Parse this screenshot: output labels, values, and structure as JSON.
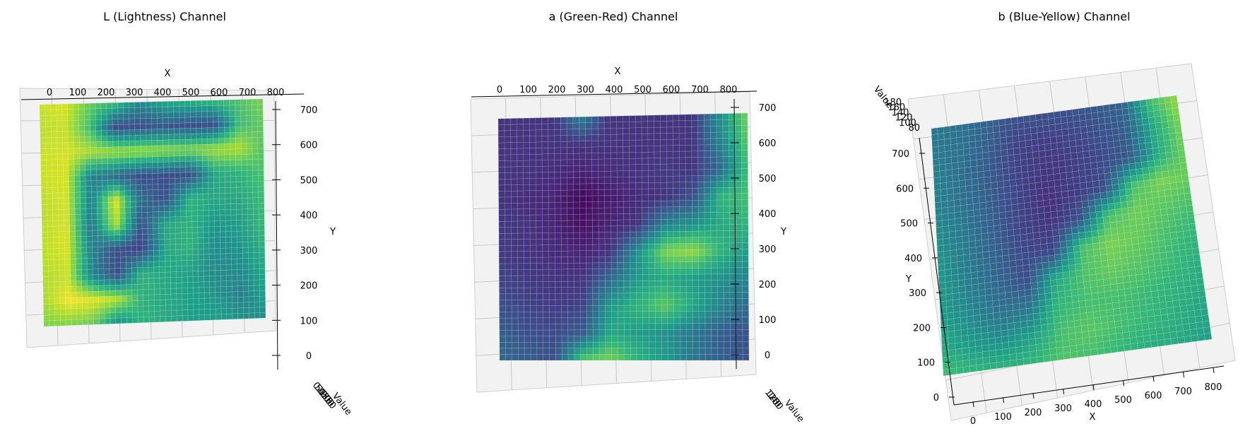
{
  "figure": {
    "subplots": [
      {
        "title": "L (Lightness) Channel"
      },
      {
        "title": "a (Green-Red) Channel"
      },
      {
        "title": "b (Blue-Yellow) Channel"
      }
    ]
  },
  "colors": {
    "colormap": "viridis",
    "low": "#440154",
    "mid": "#21918c",
    "high": "#fde725"
  },
  "chart_data": [
    {
      "type": "surface3d",
      "title": "L (Lightness) Channel",
      "xlabel": "X",
      "ylabel": "Y",
      "zlabel": "Value",
      "x_ticks": [
        "0",
        "100",
        "200",
        "300",
        "400",
        "500",
        "600",
        "700",
        "800"
      ],
      "y_ticks": [
        "0",
        "100",
        "200",
        "300",
        "400",
        "500",
        "600",
        "700"
      ],
      "z_ticks": [
        "0",
        "50",
        "100",
        "150",
        "200",
        "250"
      ],
      "xlim": [
        0,
        800
      ],
      "ylim": [
        0,
        700
      ],
      "zlim": [
        0,
        250
      ],
      "view": "top-down",
      "colormap": "viridis",
      "surface_value_grid": [
        [
          230,
          235,
          190,
          175,
          120,
          150,
          160,
          170,
          180,
          200
        ],
        [
          225,
          230,
          175,
          60,
          60,
          70,
          60,
          60,
          170,
          190
        ],
        [
          230,
          235,
          220,
          215,
          215,
          210,
          205,
          215,
          220,
          180
        ],
        [
          230,
          235,
          110,
          90,
          60,
          60,
          60,
          150,
          160,
          180
        ],
        [
          225,
          235,
          110,
          240,
          90,
          60,
          160,
          150,
          150,
          170
        ],
        [
          225,
          235,
          100,
          220,
          60,
          150,
          160,
          130,
          140,
          170
        ],
        [
          225,
          235,
          110,
          60,
          50,
          150,
          160,
          120,
          130,
          160
        ],
        [
          220,
          230,
          110,
          60,
          160,
          150,
          140,
          120,
          120,
          150
        ],
        [
          215,
          245,
          240,
          220,
          160,
          150,
          140,
          130,
          110,
          140
        ],
        [
          200,
          200,
          190,
          120,
          160,
          150,
          140,
          140,
          130,
          120
        ]
      ]
    },
    {
      "type": "surface3d",
      "title": "a (Green-Red) Channel",
      "xlabel": "X",
      "ylabel": "Y",
      "zlabel": "Value",
      "x_ticks": [
        "0",
        "100",
        "200",
        "300",
        "400",
        "500",
        "600",
        "700",
        "800"
      ],
      "y_ticks": [
        "0",
        "100",
        "200",
        "300",
        "400",
        "500",
        "600",
        "700"
      ],
      "z_ticks": [
        "120",
        "140",
        "160"
      ],
      "xlim": [
        0,
        800
      ],
      "ylim": [
        0,
        700
      ],
      "zlim": [
        120,
        160
      ],
      "view": "top-down",
      "colormap": "viridis",
      "surface_value_grid": [
        [
          126,
          126,
          126,
          138,
          126,
          126,
          126,
          126,
          140,
          152
        ],
        [
          126,
          126,
          126,
          126,
          126,
          126,
          126,
          126,
          138,
          150
        ],
        [
          126,
          126,
          125,
          124,
          125,
          126,
          127,
          126,
          134,
          148
        ],
        [
          126,
          125,
          124,
          121,
          123,
          125,
          126,
          130,
          146,
          148
        ],
        [
          127,
          126,
          124,
          122,
          124,
          126,
          138,
          140,
          144,
          146
        ],
        [
          127,
          126,
          125,
          124,
          126,
          140,
          152,
          154,
          146,
          142
        ],
        [
          128,
          127,
          126,
          126,
          134,
          142,
          144,
          142,
          140,
          138
        ],
        [
          130,
          128,
          127,
          128,
          142,
          146,
          150,
          144,
          138,
          134
        ],
        [
          132,
          130,
          129,
          132,
          144,
          142,
          140,
          136,
          132,
          130
        ],
        [
          134,
          132,
          130,
          150,
          152,
          146,
          142,
          136,
          132,
          130
        ]
      ]
    },
    {
      "type": "surface3d",
      "title": "b (Blue-Yellow) Channel",
      "xlabel": "X",
      "ylabel": "Y",
      "zlabel": "Value",
      "x_ticks": [
        "0",
        "100",
        "200",
        "300",
        "400",
        "500",
        "600",
        "700",
        "800"
      ],
      "y_ticks": [
        "0",
        "100",
        "200",
        "300",
        "400",
        "500",
        "600",
        "700"
      ],
      "z_ticks": [
        "80",
        "100",
        "120",
        "140",
        "160",
        "180"
      ],
      "xlim": [
        0,
        800
      ],
      "ylim": [
        0,
        700
      ],
      "zlim": [
        80,
        180
      ],
      "view": "rotated",
      "colormap": "viridis",
      "surface_value_grid": [
        [
          120,
          118,
          112,
          105,
          105,
          106,
          108,
          112,
          150,
          165
        ],
        [
          122,
          118,
          110,
          100,
          98,
          100,
          104,
          110,
          140,
          160
        ],
        [
          124,
          116,
          108,
          100,
          96,
          98,
          102,
          108,
          140,
          158
        ],
        [
          126,
          118,
          110,
          100,
          94,
          98,
          104,
          150,
          160,
          156
        ],
        [
          130,
          120,
          110,
          100,
          96,
          104,
          150,
          158,
          154,
          150
        ],
        [
          132,
          122,
          112,
          102,
          100,
          150,
          160,
          156,
          150,
          146
        ],
        [
          134,
          124,
          114,
          104,
          140,
          152,
          156,
          152,
          148,
          142
        ],
        [
          136,
          128,
          118,
          120,
          146,
          150,
          150,
          148,
          144,
          140
        ],
        [
          140,
          134,
          130,
          136,
          150,
          154,
          150,
          146,
          142,
          138
        ],
        [
          150,
          146,
          144,
          146,
          152,
          150,
          146,
          142,
          140,
          136
        ]
      ]
    }
  ]
}
